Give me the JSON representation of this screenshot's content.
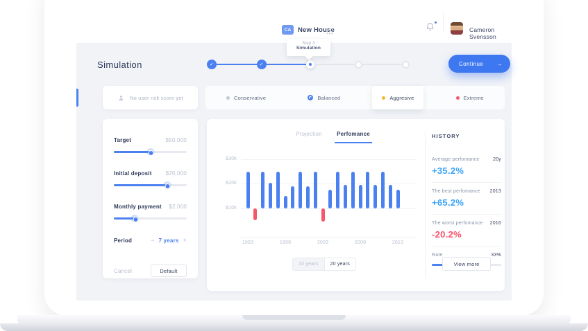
{
  "colors": {
    "accent": "#4b80f0",
    "positive": "#38a3f8",
    "negative": "#f5566b",
    "warning": "#f7b832",
    "neutral_dot": "#c2c8d4"
  },
  "header": {
    "workspace_badge": "CA",
    "workspace_name": "New House",
    "tooltip": {
      "step": "Step 3",
      "title": "Simulation"
    },
    "user_name": "Cameron Svensson",
    "icons": {
      "apps": "grid-dots",
      "notifications": "bell"
    }
  },
  "stepper": {
    "page_title": "Simulation",
    "check_glyph": "✓",
    "steps": [
      {
        "state": "complete"
      },
      {
        "state": "complete"
      },
      {
        "state": "current"
      },
      {
        "state": "upcoming"
      },
      {
        "state": "upcoming"
      }
    ],
    "continue_label": "Continue",
    "continue_arrow": "→"
  },
  "risk": {
    "empty_label": "No user risk score yet",
    "empty_icon": "person",
    "options": [
      {
        "label": "Conservative",
        "marker": "gray-dot"
      },
      {
        "label": "Balanced",
        "marker": "blue-radio"
      },
      {
        "label": "Aggresive",
        "marker": "yellow-dot",
        "elevated": true
      },
      {
        "label": "Extreme",
        "marker": "red-dot"
      }
    ]
  },
  "controls": {
    "sliders": [
      {
        "label": "Target",
        "value": "$50,000",
        "percent": 50
      },
      {
        "label": "Initial deposit",
        "value": "$20,000",
        "percent": 73
      },
      {
        "label": "Monthly payment",
        "value": "$2,000",
        "percent": 29
      }
    ],
    "period": {
      "label": "Period",
      "minus": "−",
      "value": "7 years",
      "plus": "+"
    },
    "cancel_label": "Cancel",
    "default_label": "Default"
  },
  "chart_tabs": {
    "projection": "Projection",
    "performance": "Perfomance"
  },
  "range_toggle": {
    "ten": "10 years",
    "twenty": "20 years",
    "active": "20 years"
  },
  "chart_data": {
    "type": "bar",
    "title": "Perfomance",
    "unit": "$k",
    "baseline": 10,
    "ylim": [
      0,
      30
    ],
    "yticks": [
      "$30k",
      "$20k",
      "$10k"
    ],
    "ytick_values": [
      30,
      20,
      10
    ],
    "xticks": [
      "1993",
      "1998",
      "2003",
      "2008",
      "2013"
    ],
    "grid": true,
    "bars": [
      {
        "year": 1993,
        "value": 25,
        "direction": "up"
      },
      {
        "year": 1994,
        "value": 5,
        "direction": "down"
      },
      {
        "year": 1995,
        "value": 25,
        "direction": "up"
      },
      {
        "year": 1996,
        "value": 20.5,
        "direction": "up"
      },
      {
        "year": 1997,
        "value": 25,
        "direction": "up"
      },
      {
        "year": 1998,
        "value": 15,
        "direction": "up"
      },
      {
        "year": 1999,
        "value": 19,
        "direction": "up"
      },
      {
        "year": 2000,
        "value": 25,
        "direction": "up"
      },
      {
        "year": 2001,
        "value": 19,
        "direction": "up"
      },
      {
        "year": 2002,
        "value": 25,
        "direction": "up"
      },
      {
        "year": 2003,
        "value": 4.5,
        "direction": "down"
      },
      {
        "year": 2004,
        "value": 17.5,
        "direction": "up"
      },
      {
        "year": 2005,
        "value": 25,
        "direction": "up"
      },
      {
        "year": 2006,
        "value": 19.5,
        "direction": "up"
      },
      {
        "year": 2007,
        "value": 25,
        "direction": "up"
      },
      {
        "year": 2008,
        "value": 19.5,
        "direction": "up"
      },
      {
        "year": 2009,
        "value": 25,
        "direction": "up"
      },
      {
        "year": 2010,
        "value": 19.5,
        "direction": "up"
      },
      {
        "year": 2011,
        "value": 25,
        "direction": "up"
      },
      {
        "year": 2012,
        "value": 19.5,
        "direction": "up"
      },
      {
        "year": 2013,
        "value": 17.5,
        "direction": "up"
      }
    ]
  },
  "history": {
    "title": "HISTORY",
    "items": [
      {
        "label": "Average perfomance",
        "meta": "20y",
        "value": "+35.2%",
        "tone": "positive"
      },
      {
        "label": "The best perfomance",
        "meta": "2013",
        "value": "+65.2%",
        "tone": "positive"
      },
      {
        "label": "The worst perfomance",
        "meta": "2016",
        "value": "-20.2%",
        "tone": "negative"
      }
    ],
    "rate": {
      "label": "Rate",
      "value": "33%",
      "percent": 40
    },
    "view_more_label": "View more"
  }
}
